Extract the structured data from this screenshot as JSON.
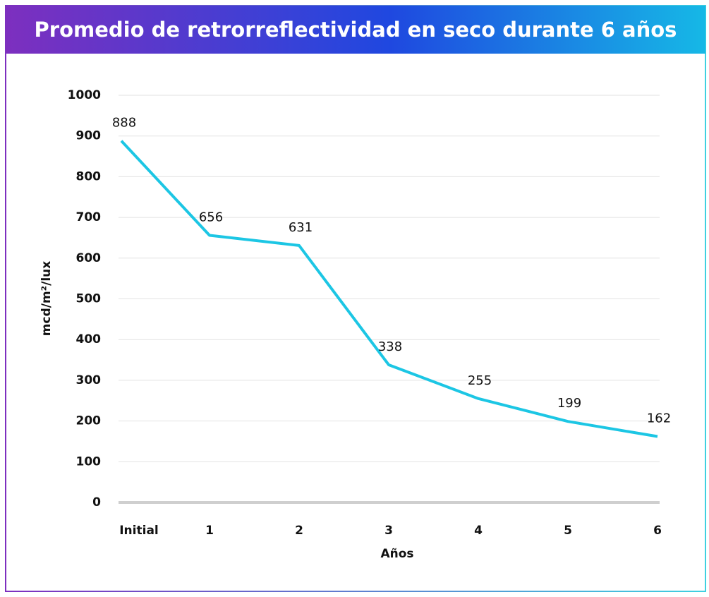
{
  "chart_data": {
    "type": "line",
    "title": "Promedio de retrorreflectividad en seco durante 6 años",
    "x_label": "Años",
    "y_label": "mcd/m²/lux",
    "categories": [
      "Initial",
      "1",
      "2",
      "3",
      "4",
      "5",
      "6"
    ],
    "values": [
      888,
      656,
      631,
      338,
      255,
      199,
      162
    ],
    "color": "#1cc6e4",
    "ylim": [
      0,
      1000
    ],
    "yticks": [
      0,
      100,
      200,
      300,
      400,
      500,
      600,
      700,
      800,
      900,
      1000
    ],
    "grid": true,
    "data_labels": true
  }
}
